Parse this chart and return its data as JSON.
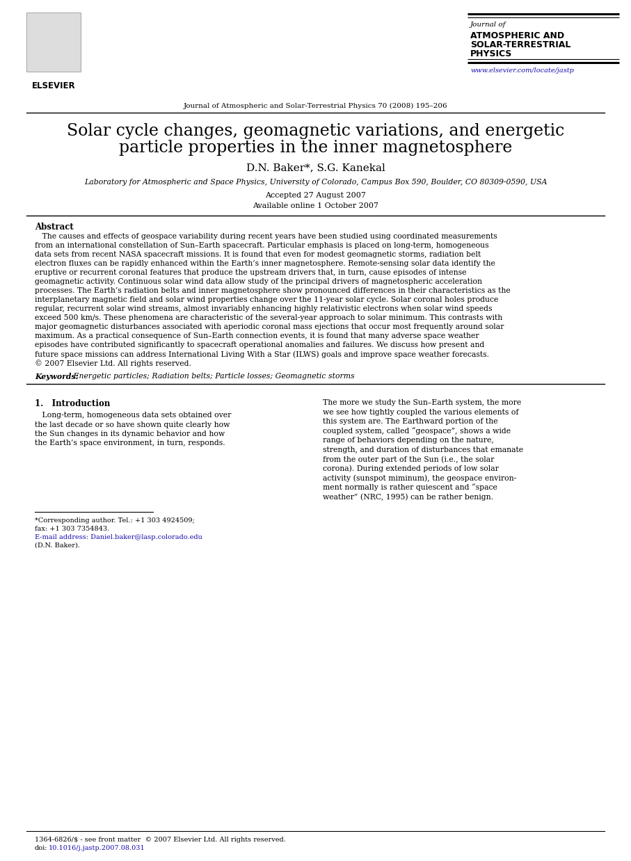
{
  "background_color": "#ffffff",
  "title_line1": "Solar cycle changes, geomagnetic variations, and energetic",
  "title_line2": "particle properties in the inner magnetosphere",
  "authors": "D.N. Baker*, S.G. Kanekal",
  "affiliation": "Laboratory for Atmospheric and Space Physics, University of Colorado, Campus Box 590, Boulder, CO 80309-0590, USA",
  "accepted": "Accepted 27 August 2007",
  "available": "Available online 1 October 2007",
  "journal_center": "Journal of Atmospheric and Solar-Terrestrial Physics 70 (2008) 195–206",
  "journal_right_line1": "Journal of",
  "journal_right_line2": "ATMOSPHERIC AND",
  "journal_right_line3": "SOLAR-TERRESTRIAL",
  "journal_right_line4": "PHYSICS",
  "journal_url": "www.elsevier.com/locate/jastp",
  "elsevier_text": "ELSEVIER",
  "abstract_title": "Abstract",
  "abstract_text_lines": [
    "   The causes and effects of geospace variability during recent years have been studied using coordinated measurements",
    "from an international constellation of Sun–Earth spacecraft. Particular emphasis is placed on long-term, homogeneous",
    "data sets from recent NASA spacecraft missions. It is found that even for modest geomagnetic storms, radiation belt",
    "electron fluxes can be rapidly enhanced within the Earth’s inner magnetosphere. Remote-sensing solar data identify the",
    "eruptive or recurrent coronal features that produce the upstream drivers that, in turn, cause episodes of intense",
    "geomagnetic activity. Continuous solar wind data allow study of the principal drivers of magnetospheric acceleration",
    "processes. The Earth’s radiation belts and inner magnetosphere show pronounced differences in their characteristics as the",
    "interplanetary magnetic field and solar wind properties change over the 11-year solar cycle. Solar coronal holes produce",
    "regular, recurrent solar wind streams, almost invariably enhancing highly relativistic electrons when solar wind speeds",
    "exceed 500 km/s. These phenomena are characteristic of the several-year approach to solar minimum. This contrasts with",
    "major geomagnetic disturbances associated with aperiodic coronal mass ejections that occur most frequently around solar",
    "maximum. As a practical consequence of Sun–Earth connection events, it is found that many adverse space weather",
    "episodes have contributed significantly to spacecraft operational anomalies and failures. We discuss how present and",
    "future space missions can address International Living With a Star (ILWS) goals and improve space weather forecasts.",
    "© 2007 Elsevier Ltd. All rights reserved."
  ],
  "keywords_label": "Keywords:",
  "keywords_text": " Energetic particles; Radiation belts; Particle losses; Geomagnetic storms",
  "section1_title": "1.   Introduction",
  "section1_left_lines": [
    "   Long-term, homogeneous data sets obtained over",
    "the last decade or so have shown quite clearly how",
    "the Sun changes in its dynamic behavior and how",
    "the Earth’s space environment, in turn, responds."
  ],
  "section1_right_lines": [
    "The more we study the Sun–Earth system, the more",
    "we see how tightly coupled the various elements of",
    "this system are. The Earthward portion of the",
    "coupled system, called “geospace”, shows a wide",
    "range of behaviors depending on the nature,",
    "strength, and duration of disturbances that emanate",
    "from the outer part of the Sun (i.e., the solar",
    "corona). During extended periods of low solar",
    "activity (sunspot miminum), the geospace environ-",
    "ment normally is rather quiescent and “space",
    "weather” (NRC, 1995) can be rather benign."
  ],
  "footnote1": "*Corresponding author. Tel.: +1 303 4924509;",
  "footnote2": "fax: +1 303 7354843.",
  "footnote3": "E-mail address: Daniel.baker@lasp.colorado.edu",
  "footnote4": "(D.N. Baker).",
  "footer1": "1364-6826/$ - see front matter  © 2007 Elsevier Ltd. All rights reserved.",
  "footer2_prefix": "doi:",
  "footer2_link": "10.1016/j.jastp.2007.08.031"
}
